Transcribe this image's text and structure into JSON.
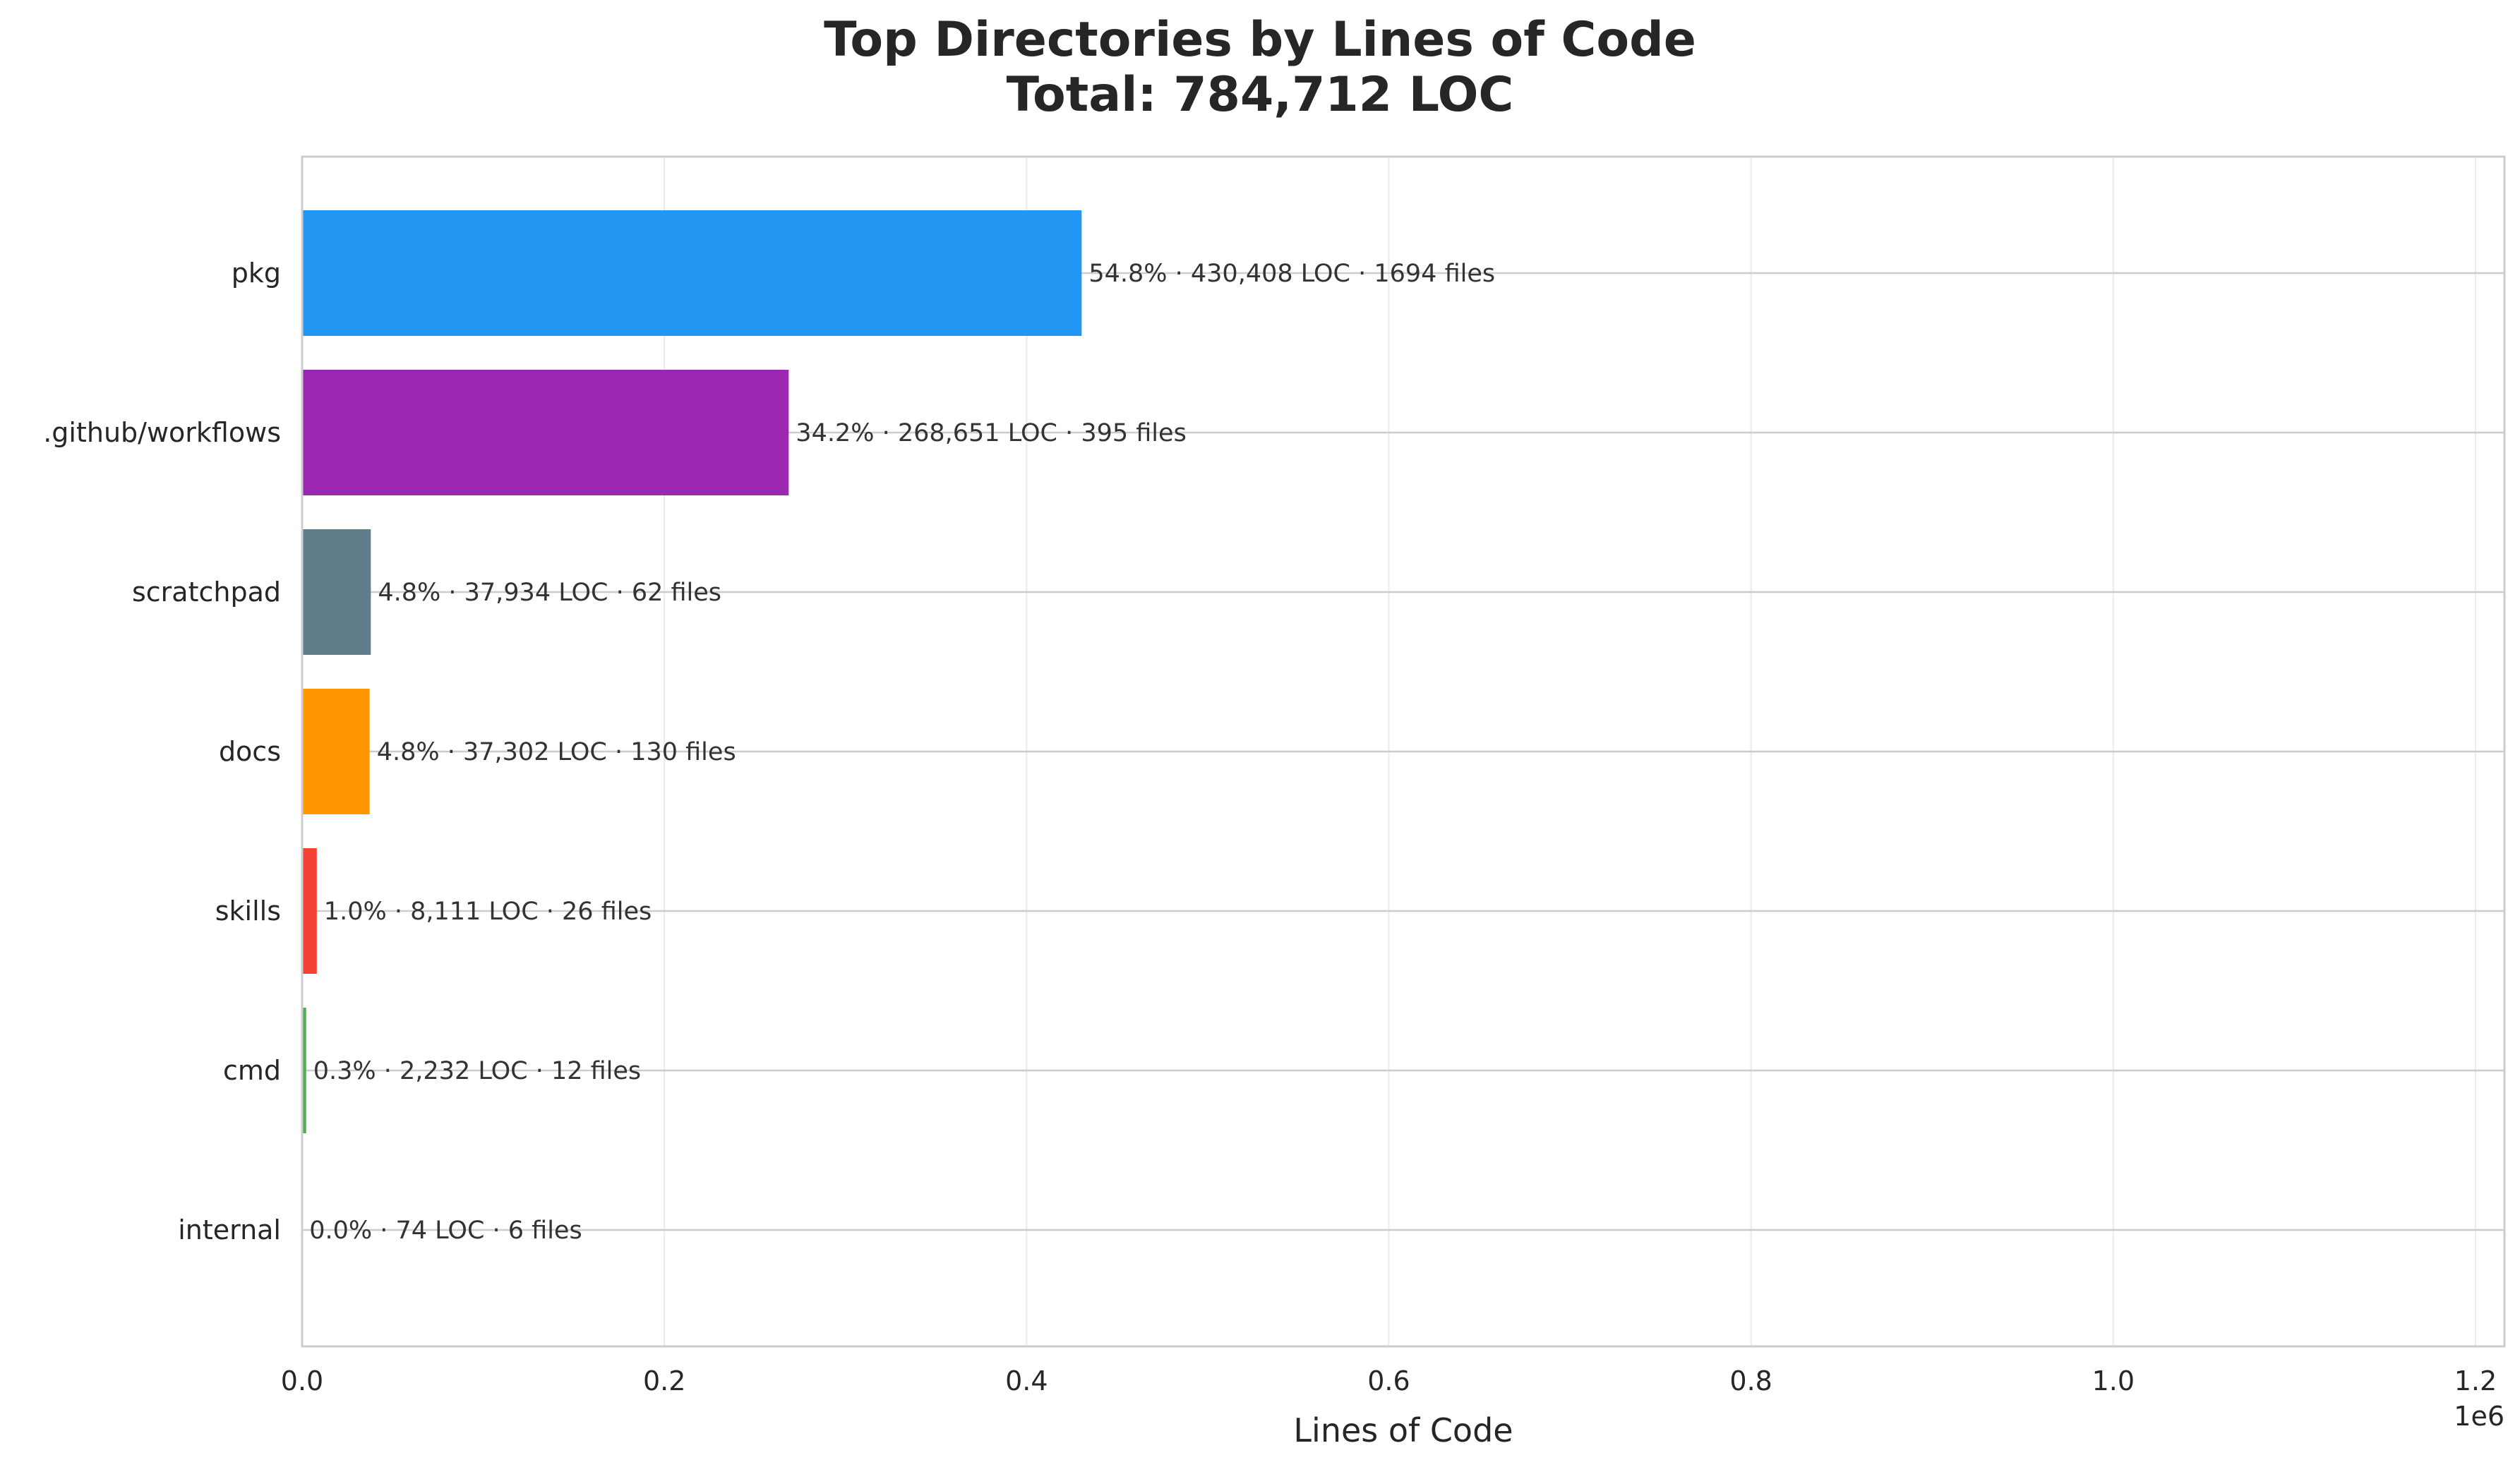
{
  "chart_data": {
    "type": "bar",
    "orientation": "horizontal",
    "title": "Top Directories by Lines of Code",
    "subtitle": "Total: 784,712 LOC",
    "xlabel": "Lines of Code",
    "ylabel": "",
    "x_offset_label": "1e6",
    "xlim": [
      0,
      1216000
    ],
    "xticks": [
      0,
      200000,
      400000,
      600000,
      800000,
      1000000,
      1200000
    ],
    "xtick_labels": [
      "0.0",
      "0.2",
      "0.4",
      "0.6",
      "0.8",
      "1.0",
      "1.2"
    ],
    "grid": true,
    "categories": [
      "pkg",
      ".github/workflows",
      "scratchpad",
      "docs",
      "skills",
      "cmd",
      "internal"
    ],
    "values": [
      430408,
      268651,
      37934,
      37302,
      8111,
      2232,
      74
    ],
    "files": [
      1694,
      395,
      62,
      130,
      26,
      12,
      6
    ],
    "data_labels": [
      "54.8% · 430,408 LOC · 1694 files",
      "34.2% · 268,651 LOC · 395 files",
      "4.8% · 37,934 LOC · 62 files",
      "4.8% · 37,302 LOC · 130 files",
      "1.0% · 8,111 LOC · 26 files",
      "0.3% · 2,232 LOC · 12 files",
      "0.0% · 74 LOC · 6 files"
    ],
    "colors": [
      "#2196F3",
      "#9C27B0",
      "#607D8B",
      "#FF9800",
      "#F44336",
      "#4CAF50",
      "#795548"
    ]
  }
}
